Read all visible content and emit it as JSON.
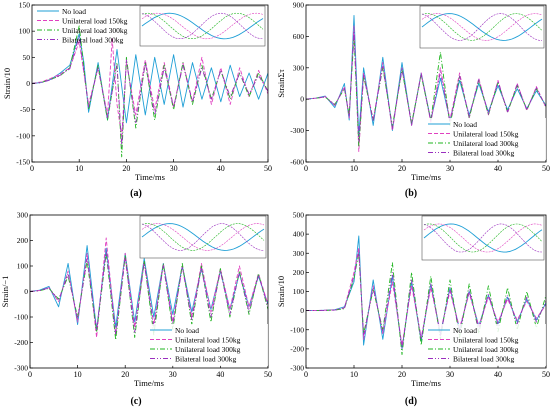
{
  "chart_data": [
    {
      "type": "line",
      "panel_label": "(a)",
      "xlabel": "Time/ms",
      "ylabel": "Strain/10",
      "xlim": [
        0,
        50
      ],
      "ylim": [
        -150,
        150
      ],
      "x_ticks": [
        0,
        10,
        20,
        30,
        40,
        50
      ],
      "y_ticks": [
        -150,
        -100,
        -50,
        0,
        50,
        100,
        150
      ],
      "legend_position": "top-left",
      "series": [
        {
          "name": "No load",
          "color": "#1f9fd6",
          "dash": "solid",
          "x": [
            0,
            2,
            4,
            6,
            8,
            10,
            11,
            12,
            14,
            16,
            18,
            20,
            22,
            24,
            26,
            28,
            30,
            32,
            34,
            36,
            38,
            40,
            42,
            44,
            46,
            48,
            50
          ],
          "y": [
            0,
            2,
            8,
            20,
            35,
            95,
            40,
            -55,
            40,
            -70,
            65,
            -75,
            55,
            -60,
            50,
            -40,
            55,
            -45,
            40,
            -30,
            30,
            -35,
            35,
            -25,
            20,
            -30,
            20
          ]
        },
        {
          "name": "Unilateral load 150kg",
          "color": "#e040c0",
          "dash": "dashed",
          "x": [
            0,
            2,
            4,
            6,
            8,
            10,
            12,
            14,
            16,
            17,
            18,
            19,
            20,
            22,
            24,
            26,
            28,
            30,
            32,
            34,
            36,
            38,
            40,
            42,
            44,
            46,
            48,
            50
          ],
          "y": [
            0,
            3,
            10,
            18,
            30,
            80,
            -40,
            30,
            -60,
            85,
            -40,
            -100,
            40,
            -60,
            45,
            -50,
            40,
            -45,
            40,
            -35,
            50,
            -40,
            30,
            -40,
            30,
            -25,
            25,
            -20
          ]
        },
        {
          "name": "Unilateral load 300kg",
          "color": "#1fb51f",
          "dash": "dash-dot",
          "x": [
            0,
            2,
            4,
            6,
            8,
            10,
            12,
            14,
            16,
            18,
            19,
            20,
            22,
            24,
            26,
            28,
            30,
            32,
            34,
            36,
            38,
            40,
            42,
            44,
            46,
            48,
            50
          ],
          "y": [
            0,
            2,
            8,
            15,
            30,
            110,
            -50,
            35,
            -70,
            40,
            -140,
            50,
            -85,
            40,
            -70,
            35,
            -50,
            40,
            -40,
            35,
            -30,
            25,
            -30,
            20,
            -25,
            20,
            -15
          ]
        },
        {
          "name": "Bilateral load 300kg",
          "color": "#9a2fbf",
          "dash": "dash-dot-dot",
          "x": [
            0,
            2,
            4,
            6,
            8,
            10,
            12,
            14,
            16,
            18,
            19,
            20,
            22,
            24,
            26,
            28,
            30,
            32,
            34,
            36,
            38,
            40,
            42,
            44,
            46,
            48,
            50
          ],
          "y": [
            0,
            2,
            7,
            16,
            28,
            90,
            -45,
            30,
            -65,
            35,
            -120,
            45,
            -75,
            40,
            -60,
            30,
            -45,
            35,
            -35,
            30,
            -30,
            25,
            -25,
            20,
            -20,
            15,
            -15
          ]
        }
      ]
    },
    {
      "type": "line",
      "panel_label": "(b)",
      "xlabel": "Time/ms",
      "ylabel": "StrainΣτ",
      "xlim": [
        0,
        50
      ],
      "ylim": [
        -600,
        900
      ],
      "x_ticks": [
        0,
        10,
        20,
        30,
        40,
        50
      ],
      "y_ticks": [
        -600,
        -300,
        0,
        300,
        600,
        900
      ],
      "legend_position": "bottom-right",
      "series": [
        {
          "name": "No load",
          "color": "#1f9fd6",
          "dash": "solid",
          "x": [
            0,
            2,
            4,
            6,
            8,
            9,
            10,
            11,
            12,
            14,
            16,
            18,
            20,
            22,
            24,
            26,
            28,
            30,
            32,
            34,
            36,
            38,
            40,
            42,
            44,
            46,
            48,
            50
          ],
          "y": [
            0,
            10,
            30,
            -80,
            150,
            -200,
            800,
            -350,
            300,
            -250,
            400,
            -300,
            350,
            -250,
            250,
            -200,
            200,
            -200,
            180,
            -150,
            150,
            -120,
            130,
            -100,
            100,
            -90,
            80,
            -60
          ]
        },
        {
          "name": "Unilateral load 150kg",
          "color": "#e040c0",
          "dash": "dashed",
          "x": [
            0,
            2,
            4,
            6,
            8,
            9,
            10,
            11,
            12,
            14,
            16,
            18,
            20,
            22,
            24,
            26,
            28,
            30,
            32,
            34,
            36,
            38,
            40,
            42,
            44,
            46,
            48,
            50
          ],
          "y": [
            0,
            10,
            25,
            -60,
            120,
            -180,
            700,
            -500,
            250,
            -200,
            350,
            -300,
            300,
            -250,
            250,
            -220,
            300,
            -200,
            250,
            -180,
            200,
            -150,
            180,
            -130,
            150,
            -110,
            120,
            -80
          ]
        },
        {
          "name": "Unilateral load 300kg",
          "color": "#1fb51f",
          "dash": "dash-dot",
          "x": [
            0,
            2,
            4,
            6,
            8,
            9,
            10,
            11,
            12,
            14,
            16,
            18,
            20,
            22,
            24,
            26,
            28,
            30,
            32,
            34,
            36,
            38,
            40,
            42,
            44,
            46,
            48,
            50
          ],
          "y": [
            0,
            10,
            20,
            -50,
            100,
            -150,
            600,
            -450,
            220,
            -200,
            300,
            -260,
            280,
            -230,
            230,
            -200,
            450,
            -250,
            220,
            -180,
            180,
            -150,
            160,
            -120,
            130,
            -100,
            100,
            -70
          ]
        },
        {
          "name": "Bilateral load 300kg",
          "color": "#9a2fbf",
          "dash": "dash-dot-dot",
          "x": [
            0,
            2,
            4,
            6,
            8,
            9,
            10,
            11,
            12,
            14,
            16,
            18,
            20,
            22,
            24,
            26,
            28,
            30,
            32,
            34,
            36,
            38,
            40,
            42,
            44,
            46,
            48,
            50
          ],
          "y": [
            0,
            10,
            22,
            -55,
            110,
            -160,
            650,
            -400,
            230,
            -210,
            320,
            -280,
            290,
            -240,
            240,
            -210,
            260,
            -220,
            220,
            -170,
            190,
            -140,
            170,
            -120,
            140,
            -100,
            110,
            -75
          ]
        }
      ]
    },
    {
      "type": "line",
      "panel_label": "(c)",
      "xlabel": "Time/ms",
      "ylabel": "Strain/−1",
      "xlim": [
        0,
        50
      ],
      "ylim": [
        -300,
        300
      ],
      "x_ticks": [
        0,
        10,
        20,
        30,
        40,
        50
      ],
      "y_ticks": [
        -300,
        -200,
        -100,
        0,
        100,
        200,
        300
      ],
      "legend_position": "bottom-right",
      "series": [
        {
          "name": "No load",
          "color": "#1f9fd6",
          "dash": "solid",
          "x": [
            0,
            2,
            4,
            6,
            8,
            10,
            12,
            14,
            16,
            18,
            20,
            22,
            24,
            26,
            28,
            30,
            32,
            34,
            36,
            38,
            40,
            42,
            44,
            46,
            48,
            50
          ],
          "y": [
            0,
            5,
            20,
            -60,
            110,
            -130,
            180,
            -150,
            170,
            -140,
            150,
            -120,
            130,
            -100,
            110,
            -90,
            100,
            -80,
            90,
            -70,
            80,
            -70,
            70,
            -60,
            60,
            -50
          ]
        },
        {
          "name": "Unilateral load 150kg",
          "color": "#e040c0",
          "dash": "dashed",
          "x": [
            0,
            2,
            4,
            6,
            8,
            10,
            12,
            14,
            16,
            18,
            20,
            22,
            24,
            26,
            28,
            30,
            32,
            34,
            36,
            38,
            40,
            42,
            44,
            46,
            48,
            50
          ],
          "y": [
            0,
            4,
            15,
            -40,
            80,
            -120,
            150,
            -180,
            210,
            -170,
            150,
            -140,
            120,
            -130,
            110,
            -120,
            100,
            -100,
            110,
            -80,
            90,
            -70,
            100,
            -60,
            70,
            -50
          ]
        },
        {
          "name": "Unilateral load 300kg",
          "color": "#1fb51f",
          "dash": "dash-dot",
          "x": [
            0,
            2,
            4,
            6,
            8,
            10,
            12,
            14,
            16,
            18,
            20,
            22,
            24,
            26,
            28,
            30,
            32,
            34,
            36,
            38,
            40,
            42,
            44,
            46,
            48,
            50
          ],
          "y": [
            0,
            3,
            12,
            -30,
            60,
            -100,
            120,
            -160,
            150,
            -190,
            140,
            -180,
            120,
            -170,
            110,
            -150,
            110,
            -130,
            100,
            -120,
            90,
            -100,
            80,
            -90,
            70,
            -70
          ]
        },
        {
          "name": "Bilateral load 300kg",
          "color": "#9a2fbf",
          "dash": "dash-dot-dot",
          "x": [
            0,
            2,
            4,
            6,
            8,
            10,
            12,
            14,
            16,
            18,
            20,
            22,
            24,
            26,
            28,
            30,
            32,
            34,
            36,
            38,
            40,
            42,
            44,
            46,
            48,
            50
          ],
          "y": [
            0,
            3,
            14,
            -35,
            70,
            -110,
            130,
            -150,
            160,
            -170,
            130,
            -160,
            110,
            -140,
            100,
            -130,
            95,
            -110,
            90,
            -100,
            80,
            -90,
            75,
            -80,
            65,
            -60
          ]
        }
      ]
    },
    {
      "type": "line",
      "panel_label": "(d)",
      "xlabel": "Time/ms",
      "ylabel": "Strain/10",
      "xlim": [
        0,
        50
      ],
      "ylim": [
        -300,
        500
      ],
      "x_ticks": [
        0,
        10,
        20,
        30,
        40,
        50
      ],
      "y_ticks": [
        -300,
        -200,
        -100,
        0,
        100,
        200,
        300,
        400,
        500
      ],
      "legend_position": "bottom-right",
      "series": [
        {
          "name": "No load",
          "color": "#1f9fd6",
          "dash": "solid",
          "x": [
            0,
            2,
            4,
            6,
            8,
            10,
            11,
            12,
            14,
            16,
            18,
            20,
            22,
            24,
            26,
            28,
            30,
            32,
            34,
            36,
            38,
            40,
            42,
            44,
            46,
            48,
            50
          ],
          "y": [
            0,
            0,
            2,
            5,
            20,
            150,
            390,
            -180,
            160,
            -150,
            180,
            -200,
            150,
            -160,
            140,
            -120,
            120,
            -100,
            100,
            -80,
            80,
            -70,
            70,
            -60,
            60,
            -50,
            40
          ]
        },
        {
          "name": "Unilateral load 150kg",
          "color": "#e040c0",
          "dash": "dashed",
          "x": [
            0,
            2,
            4,
            6,
            8,
            10,
            11,
            12,
            14,
            16,
            18,
            20,
            22,
            24,
            26,
            28,
            30,
            32,
            34,
            36,
            38,
            40,
            42,
            44,
            46,
            48,
            50
          ],
          "y": [
            0,
            0,
            2,
            4,
            15,
            200,
            330,
            -150,
            130,
            -120,
            150,
            -180,
            130,
            -140,
            120,
            -110,
            100,
            -90,
            90,
            -80,
            70,
            -60,
            60,
            -50,
            50,
            -40,
            30
          ]
        },
        {
          "name": "Unilateral load 300kg",
          "color": "#1fb51f",
          "dash": "dash-dot",
          "x": [
            0,
            2,
            4,
            6,
            8,
            10,
            11,
            12,
            14,
            16,
            18,
            20,
            22,
            24,
            26,
            28,
            30,
            32,
            34,
            36,
            38,
            40,
            42,
            44,
            46,
            48,
            50
          ],
          "y": [
            0,
            0,
            1,
            3,
            10,
            170,
            300,
            -120,
            110,
            -100,
            250,
            -230,
            200,
            -180,
            180,
            -150,
            160,
            -140,
            140,
            -120,
            130,
            -110,
            120,
            -100,
            100,
            -90,
            80
          ]
        },
        {
          "name": "Bilateral load 300kg",
          "color": "#9a2fbf",
          "dash": "dash-dot-dot",
          "x": [
            0,
            2,
            4,
            6,
            8,
            10,
            11,
            12,
            14,
            16,
            18,
            20,
            22,
            24,
            26,
            28,
            30,
            32,
            34,
            36,
            38,
            40,
            42,
            44,
            46,
            48,
            50
          ],
          "y": [
            0,
            0,
            1,
            3,
            12,
            180,
            310,
            -130,
            120,
            -110,
            200,
            -200,
            160,
            -150,
            140,
            -130,
            120,
            -110,
            110,
            -100,
            90,
            -80,
            80,
            -70,
            70,
            -60,
            50
          ]
        }
      ]
    }
  ]
}
